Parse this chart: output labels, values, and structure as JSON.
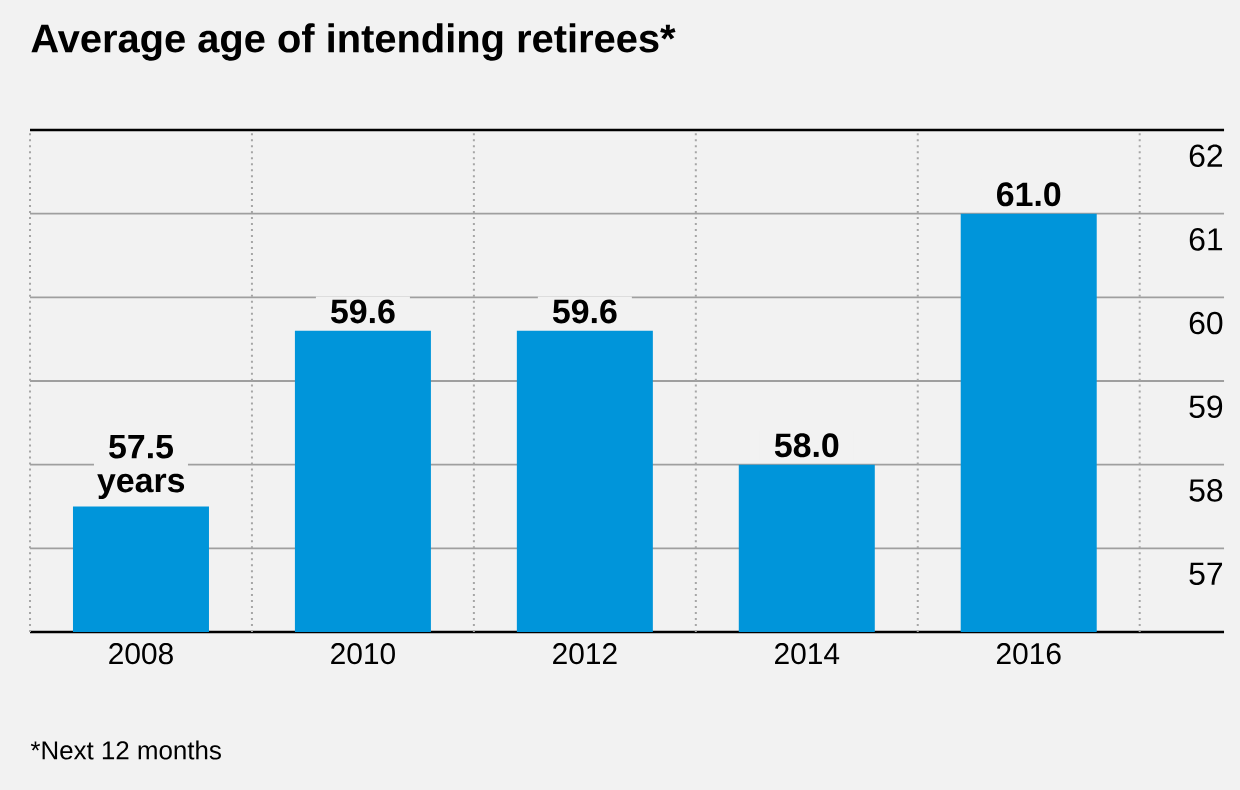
{
  "chart_data": {
    "type": "bar",
    "title": "Average age of intending retirees*",
    "categories": [
      "2008",
      "2010",
      "2012",
      "2014",
      "2016"
    ],
    "values": [
      57.5,
      59.6,
      59.6,
      58.0,
      61.0
    ],
    "value_labels": [
      "57.5 years",
      "59.6",
      "59.6",
      "58.0",
      "61.0"
    ],
    "color": "#0095da",
    "ylim": [
      56,
      62
    ],
    "yticks": [
      57,
      58,
      59,
      60,
      61,
      62
    ],
    "grid": true,
    "annotations": [
      "*Next 12 months"
    ]
  }
}
